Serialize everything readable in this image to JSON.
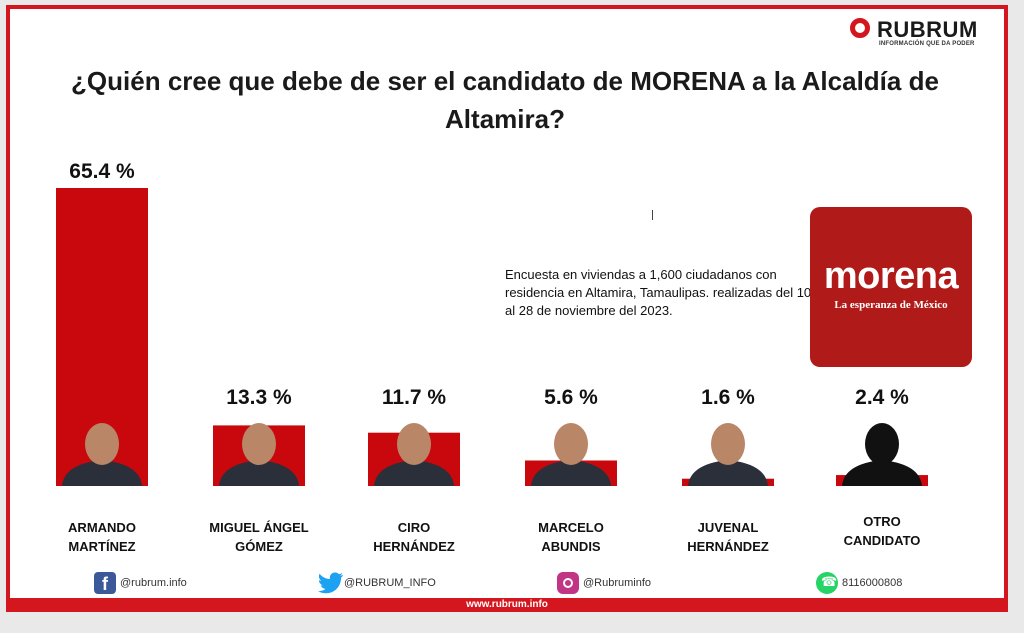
{
  "brand": {
    "name": "RUBRUM",
    "tagline": "INFORMACIÓN QUE DA PODER",
    "website": "www.rubrum.info"
  },
  "title": "¿Quién cree que debe de ser el candidato de MORENA a la Alcaldía de Altamira?",
  "note": "Encuesta en viviendas a 1,600 ciudadanos con residencia en Altamira, Tamaulipas. realizadas del 10 al 28 de noviembre del 2023.",
  "party_logo": {
    "name": "morena",
    "slogan": "La esperanza de México",
    "color": "#b01a18"
  },
  "colors": {
    "bar": "#c8080d",
    "accent": "#d4161f"
  },
  "chart_data": {
    "type": "bar",
    "categories": [
      "ARMANDO MARTÍNEZ",
      "MIGUEL ÁNGEL GÓMEZ",
      "CIRO HERNÁNDEZ",
      "MARCELO ABUNDIS",
      "JUVENAL HERNÁNDEZ",
      "OTRO CANDIDATO"
    ],
    "name_lines": [
      [
        "ARMANDO",
        "MARTÍNEZ"
      ],
      [
        "MIGUEL ÁNGEL",
        "GÓMEZ"
      ],
      [
        "CIRO",
        "HERNÁNDEZ"
      ],
      [
        "MARCELO",
        "ABUNDIS"
      ],
      [
        "JUVENAL",
        "HERNÁNDEZ"
      ],
      [
        "OTRO",
        "CANDIDATO"
      ]
    ],
    "values": [
      65.4,
      13.3,
      11.7,
      5.6,
      1.6,
      2.4
    ],
    "value_labels": [
      "65.4 %",
      "13.3 %",
      "11.7 %",
      "5.6 %",
      "1.6 %",
      "2.4 %"
    ],
    "title": "¿Quién cree que debe de ser el candidato de MORENA a la Alcaldía de Altamira?",
    "xlabel": "",
    "ylabel": "",
    "ylim": [
      0,
      65.4
    ],
    "grid": false,
    "legend": "none"
  },
  "social": [
    {
      "icon": "facebook-icon",
      "handle": "@rubrum.info"
    },
    {
      "icon": "twitter-icon",
      "handle": "@RUBRUM_INFO"
    },
    {
      "icon": "instagram-icon",
      "handle": "@Rubruminfo"
    },
    {
      "icon": "whatsapp-icon",
      "handle": "8116000808"
    }
  ]
}
